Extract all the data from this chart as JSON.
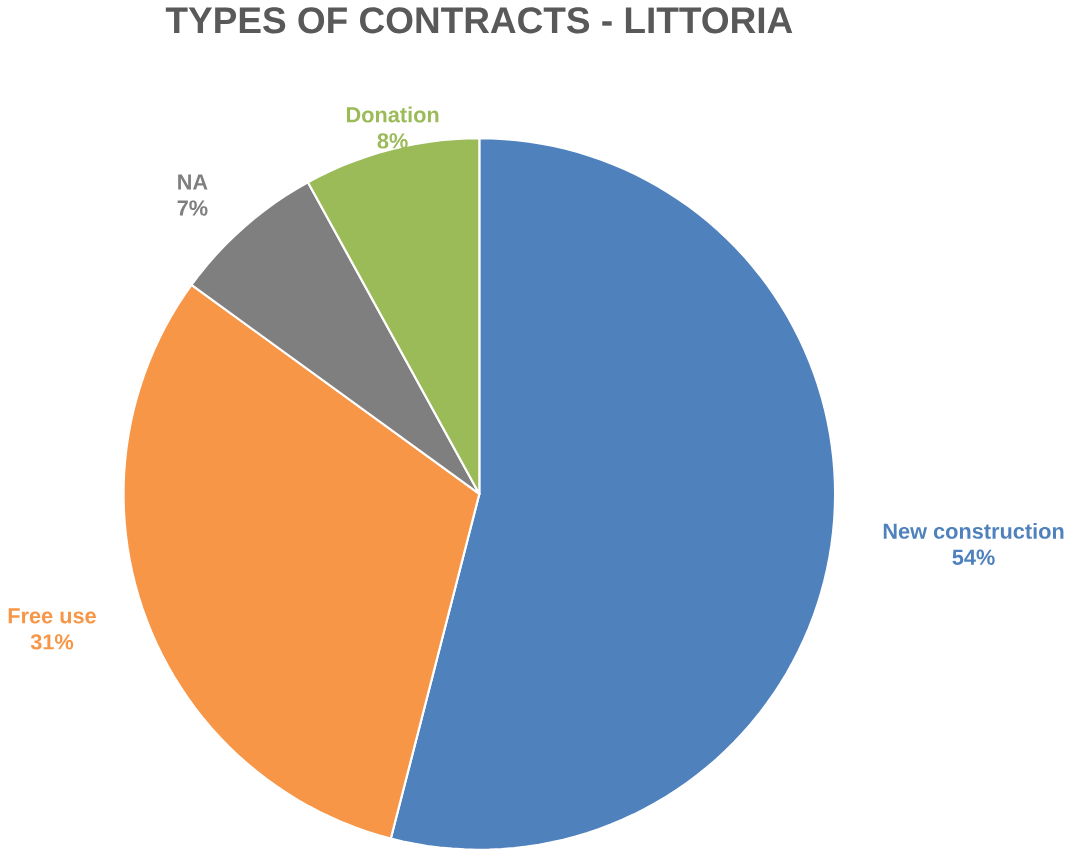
{
  "chart_data": {
    "type": "pie",
    "title": "TYPES OF CONTRACTS - LITTORIA",
    "categories": [
      "New construction",
      "Free use",
      "NA",
      "Donation"
    ],
    "values": [
      54,
      31,
      7,
      8
    ],
    "colors": [
      "#4f81bd",
      "#f79646",
      "#7f7f7f",
      "#9bbb59"
    ],
    "value_labels": [
      "54%",
      "31%",
      "7%",
      "8%"
    ]
  }
}
